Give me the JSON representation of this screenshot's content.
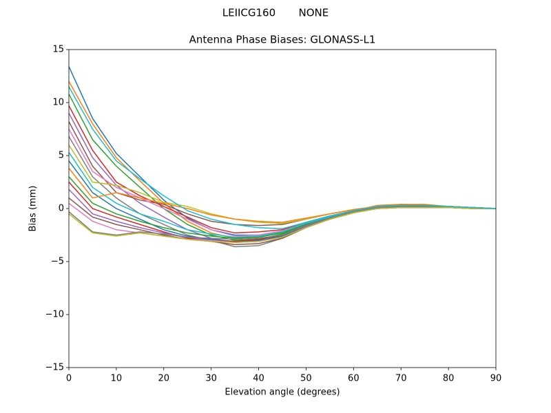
{
  "chart_data": {
    "type": "line",
    "suptitle": "LEIICG160       NONE",
    "title": "Antenna Phase Biases: GLONASS-L1",
    "xlabel": "Elevation angle (degrees)",
    "ylabel": "Bias (mm)",
    "x": [
      0,
      5,
      10,
      15,
      20,
      25,
      30,
      35,
      40,
      45,
      50,
      55,
      60,
      65,
      70,
      75,
      80,
      85,
      90
    ],
    "xlim": [
      0,
      90
    ],
    "ylim": [
      -15,
      15
    ],
    "xticks": [
      0,
      10,
      20,
      30,
      40,
      50,
      60,
      70,
      80,
      90
    ],
    "yticks": [
      {
        "value": -15,
        "label": "−15"
      },
      {
        "value": -10,
        "label": "−10"
      },
      {
        "value": -5,
        "label": "−5"
      },
      0,
      5,
      10,
      15
    ],
    "grid": false,
    "series": [
      {
        "color": "#1f77b4",
        "values": [
          13.4,
          8.5,
          5.2,
          3.0,
          0.8,
          -0.9,
          -2.0,
          -2.5,
          -2.5,
          -2.3,
          -1.5,
          -0.9,
          -0.3,
          0.2,
          0.4,
          0.3,
          0.2,
          0.1,
          0.0
        ]
      },
      {
        "color": "#ff7f0e",
        "values": [
          12.0,
          8.0,
          4.8,
          2.6,
          0.5,
          -1.2,
          -2.3,
          -2.8,
          -2.6,
          -2.2,
          -1.4,
          -0.8,
          -0.2,
          0.3,
          0.4,
          0.4,
          0.2,
          0.1,
          0.0
        ]
      },
      {
        "color": "#2ca02c",
        "values": [
          10.8,
          6.5,
          4.0,
          2.0,
          0.0,
          -1.5,
          -2.5,
          -3.0,
          -2.9,
          -2.4,
          -1.6,
          -0.9,
          -0.3,
          0.2,
          0.3,
          0.3,
          0.2,
          0.1,
          0.0
        ]
      },
      {
        "color": "#d62728",
        "values": [
          9.7,
          5.5,
          2.5,
          1.2,
          0.2,
          -0.8,
          -1.8,
          -2.3,
          -2.2,
          -2.0,
          -1.3,
          -0.7,
          -0.2,
          0.2,
          0.3,
          0.2,
          0.2,
          0.1,
          0.0
        ]
      },
      {
        "color": "#9467bd",
        "values": [
          9.0,
          4.8,
          2.2,
          0.5,
          -0.8,
          -2.0,
          -2.8,
          -3.2,
          -3.0,
          -2.5,
          -1.6,
          -0.9,
          -0.3,
          0.1,
          0.3,
          0.3,
          0.2,
          0.1,
          0.0
        ]
      },
      {
        "color": "#8c564b",
        "values": [
          8.2,
          4.0,
          1.5,
          0.8,
          0.4,
          -0.5,
          -1.2,
          -1.5,
          -1.6,
          -1.5,
          -1.0,
          -0.5,
          -0.1,
          0.2,
          0.2,
          0.2,
          0.1,
          0.1,
          0.0
        ]
      },
      {
        "color": "#e377c2",
        "values": [
          7.5,
          3.5,
          2.0,
          1.0,
          0.0,
          -1.0,
          -2.0,
          -2.6,
          -2.5,
          -2.1,
          -1.4,
          -0.8,
          -0.2,
          0.2,
          0.3,
          0.3,
          0.2,
          0.1,
          0.0
        ]
      },
      {
        "color": "#7f7f7f",
        "values": [
          6.8,
          3.0,
          1.0,
          -0.5,
          -1.5,
          -2.5,
          -3.0,
          -3.6,
          -3.5,
          -2.8,
          -1.8,
          -1.0,
          -0.4,
          0.1,
          0.3,
          0.2,
          0.2,
          0.1,
          0.0
        ]
      },
      {
        "color": "#bcbd22",
        "values": [
          6.0,
          2.5,
          2.2,
          1.5,
          0.6,
          0.2,
          -0.5,
          -1.0,
          -1.3,
          -1.4,
          -1.0,
          -0.5,
          -0.1,
          0.2,
          0.3,
          0.2,
          0.1,
          0.1,
          0.0
        ]
      },
      {
        "color": "#17becf",
        "values": [
          5.3,
          2.0,
          0.5,
          -0.5,
          -1.2,
          -2.0,
          -2.4,
          -2.7,
          -2.6,
          -2.2,
          -1.4,
          -0.8,
          -0.2,
          0.2,
          0.3,
          0.3,
          0.2,
          0.1,
          0.0
        ]
      },
      {
        "color": "#1f77b4",
        "values": [
          4.5,
          1.5,
          0.0,
          -1.0,
          -2.0,
          -2.6,
          -2.9,
          -3.1,
          -3.0,
          -2.6,
          -1.7,
          -1.0,
          -0.4,
          0.0,
          0.1,
          0.1,
          0.1,
          0.0,
          0.0
        ]
      },
      {
        "color": "#ff7f0e",
        "values": [
          3.8,
          1.0,
          1.5,
          1.0,
          0.5,
          0.0,
          -0.6,
          -1.0,
          -1.2,
          -1.3,
          -0.9,
          -0.5,
          -0.1,
          0.2,
          0.3,
          0.3,
          0.2,
          0.1,
          0.0
        ]
      },
      {
        "color": "#2ca02c",
        "values": [
          3.0,
          0.5,
          -0.5,
          -1.2,
          -1.8,
          -2.3,
          -2.6,
          -2.8,
          -2.7,
          -2.3,
          -1.5,
          -0.9,
          -0.3,
          0.1,
          0.2,
          0.2,
          0.1,
          0.1,
          0.0
        ]
      },
      {
        "color": "#d62728",
        "values": [
          2.5,
          0.0,
          -0.8,
          -1.5,
          -2.2,
          -2.8,
          -3.0,
          -3.1,
          -2.9,
          -2.5,
          -1.6,
          -0.9,
          -0.3,
          0.1,
          0.2,
          0.2,
          0.1,
          0.1,
          0.0
        ]
      },
      {
        "color": "#9467bd",
        "values": [
          1.8,
          -0.5,
          -1.2,
          -1.8,
          -2.3,
          -2.7,
          -3.0,
          -3.2,
          -3.1,
          -2.7,
          -1.7,
          -1.0,
          -0.4,
          0.0,
          0.1,
          0.1,
          0.1,
          0.0,
          0.0
        ]
      },
      {
        "color": "#8c564b",
        "values": [
          1.0,
          -0.8,
          -1.5,
          -2.0,
          -2.5,
          -2.9,
          -3.1,
          -3.4,
          -3.3,
          -2.8,
          -1.8,
          -1.0,
          -0.4,
          0.0,
          0.1,
          0.1,
          0.1,
          0.0,
          0.0
        ]
      },
      {
        "color": "#e377c2",
        "values": [
          0.5,
          -1.2,
          -2.0,
          -2.3,
          -2.6,
          -2.9,
          -3.0,
          -3.2,
          -3.1,
          -2.7,
          -1.8,
          -1.0,
          -0.4,
          0.0,
          0.1,
          0.1,
          0.1,
          0.0,
          0.0
        ]
      },
      {
        "color": "#7f7f7f",
        "values": [
          -0.3,
          -2.2,
          -2.5,
          -2.2,
          -2.4,
          -2.7,
          -2.8,
          -2.9,
          -2.8,
          -2.5,
          -1.6,
          -0.9,
          -0.3,
          0.1,
          0.2,
          0.2,
          0.1,
          0.0,
          0.0
        ]
      },
      {
        "color": "#bcbd22",
        "values": [
          -0.5,
          -2.3,
          -2.6,
          -2.3,
          -2.6,
          -2.9,
          -3.1,
          -3.2,
          -3.1,
          -2.7,
          -1.8,
          -1.0,
          -0.4,
          0.0,
          0.1,
          0.1,
          0.1,
          0.0,
          0.0
        ]
      },
      {
        "color": "#17becf",
        "values": [
          11.5,
          7.5,
          4.5,
          2.8,
          1.2,
          -0.2,
          -1.0,
          -1.5,
          -1.8,
          -1.9,
          -1.3,
          -0.7,
          -0.2,
          0.2,
          0.3,
          0.3,
          0.2,
          0.1,
          0.0
        ]
      }
    ]
  }
}
